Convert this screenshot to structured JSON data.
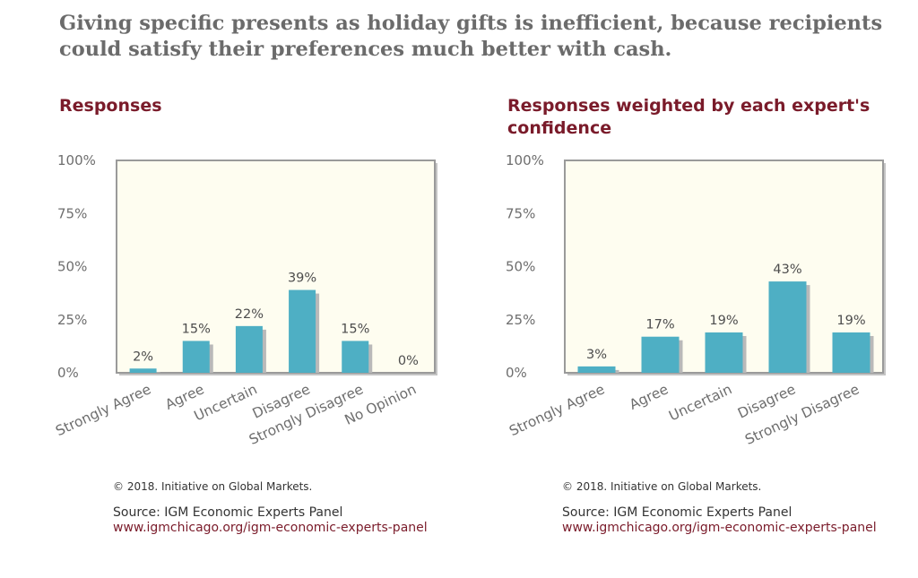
{
  "headline": "Giving specific presents as holiday gifts is inefficient, because recipients could satisfy their preferences much better with cash.",
  "chart_data": [
    {
      "type": "bar",
      "title": "Responses",
      "categories": [
        "Strongly Agree",
        "Agree",
        "Uncertain",
        "Disagree",
        "Strongly Disagree",
        "No Opinion"
      ],
      "values": [
        2,
        15,
        22,
        39,
        15,
        0
      ],
      "value_labels": [
        "2%",
        "15%",
        "22%",
        "39%",
        "15%",
        "0%"
      ],
      "yticks": [
        "0%",
        "25%",
        "50%",
        "75%",
        "100%"
      ],
      "ylim": [
        0,
        100
      ],
      "bar_color": "#4eafc4",
      "plot_bg": "#fefdf0",
      "grid": false,
      "legend": "none"
    },
    {
      "type": "bar",
      "title": "Responses weighted by each expert's confidence",
      "categories": [
        "Strongly Agree",
        "Agree",
        "Uncertain",
        "Disagree",
        "Strongly Disagree"
      ],
      "values": [
        3,
        17,
        19,
        43,
        19
      ],
      "value_labels": [
        "3%",
        "17%",
        "19%",
        "43%",
        "19%"
      ],
      "yticks": [
        "0%",
        "25%",
        "50%",
        "75%",
        "100%"
      ],
      "ylim": [
        0,
        100
      ],
      "bar_color": "#4eafc4",
      "plot_bg": "#fefdf0",
      "grid": false,
      "legend": "none"
    }
  ],
  "footers": [
    {
      "copyright": "© 2018. Initiative on Global Markets.",
      "source": "Source: IGM Economic Experts Panel",
      "link": "www.igmchicago.org/igm-economic-experts-panel"
    },
    {
      "copyright": "© 2018. Initiative on Global Markets.",
      "source": "Source: IGM Economic Experts Panel",
      "link": "www.igmchicago.org/igm-economic-experts-panel"
    }
  ]
}
